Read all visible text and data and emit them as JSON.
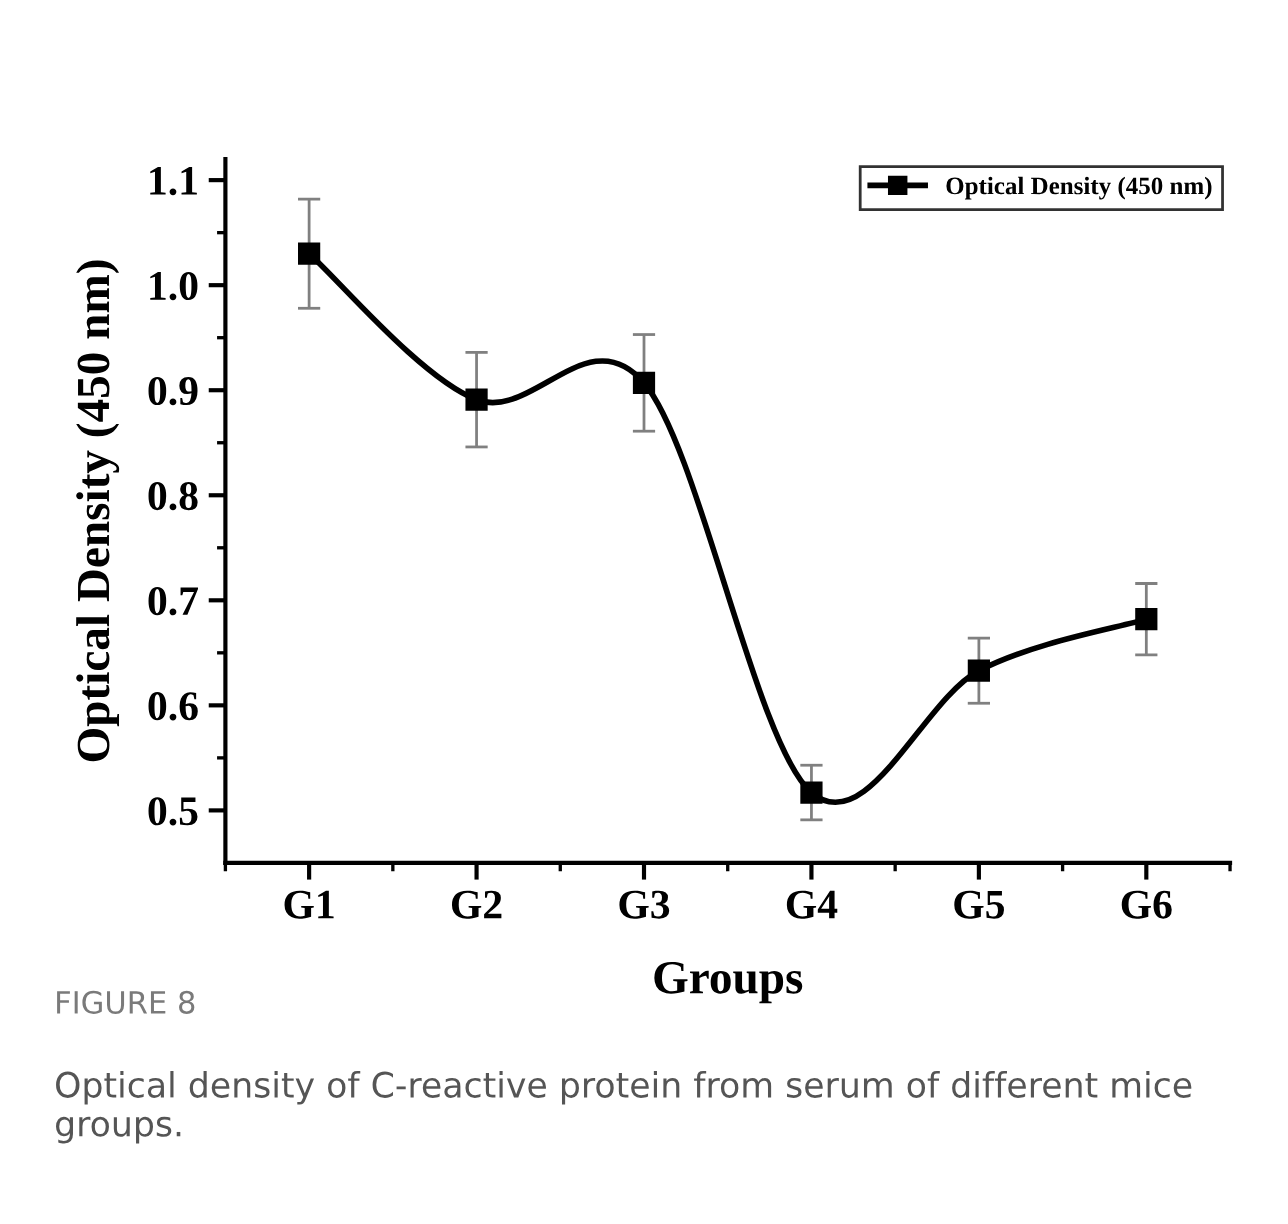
{
  "chart_data": {
    "type": "line",
    "xlabel": "Groups",
    "ylabel": "Optical Density (450 nm)",
    "categories": [
      "G1",
      "G2",
      "G3",
      "G4",
      "G5",
      "G6"
    ],
    "series": [
      {
        "name": "Optical Density (450 nm)",
        "color": "#000000",
        "values": [
          1.03,
          0.891,
          0.907,
          0.517,
          0.633,
          0.682
        ],
        "errors": [
          0.052,
          0.045,
          0.046,
          0.026,
          0.031,
          0.034
        ]
      }
    ],
    "ylim": [
      0.45,
      1.12
    ],
    "yticks": [
      0.5,
      0.6,
      0.7,
      0.8,
      0.9,
      {
        "value": 1.0,
        "label": "1.0"
      },
      1.1
    ],
    "marker": "square",
    "line_style": "solid",
    "legend": "top right",
    "grid": false,
    "annotations": [
      "FIGURE 8",
      "Optical density of C-reactive protein from serum of different mice groups."
    ]
  }
}
